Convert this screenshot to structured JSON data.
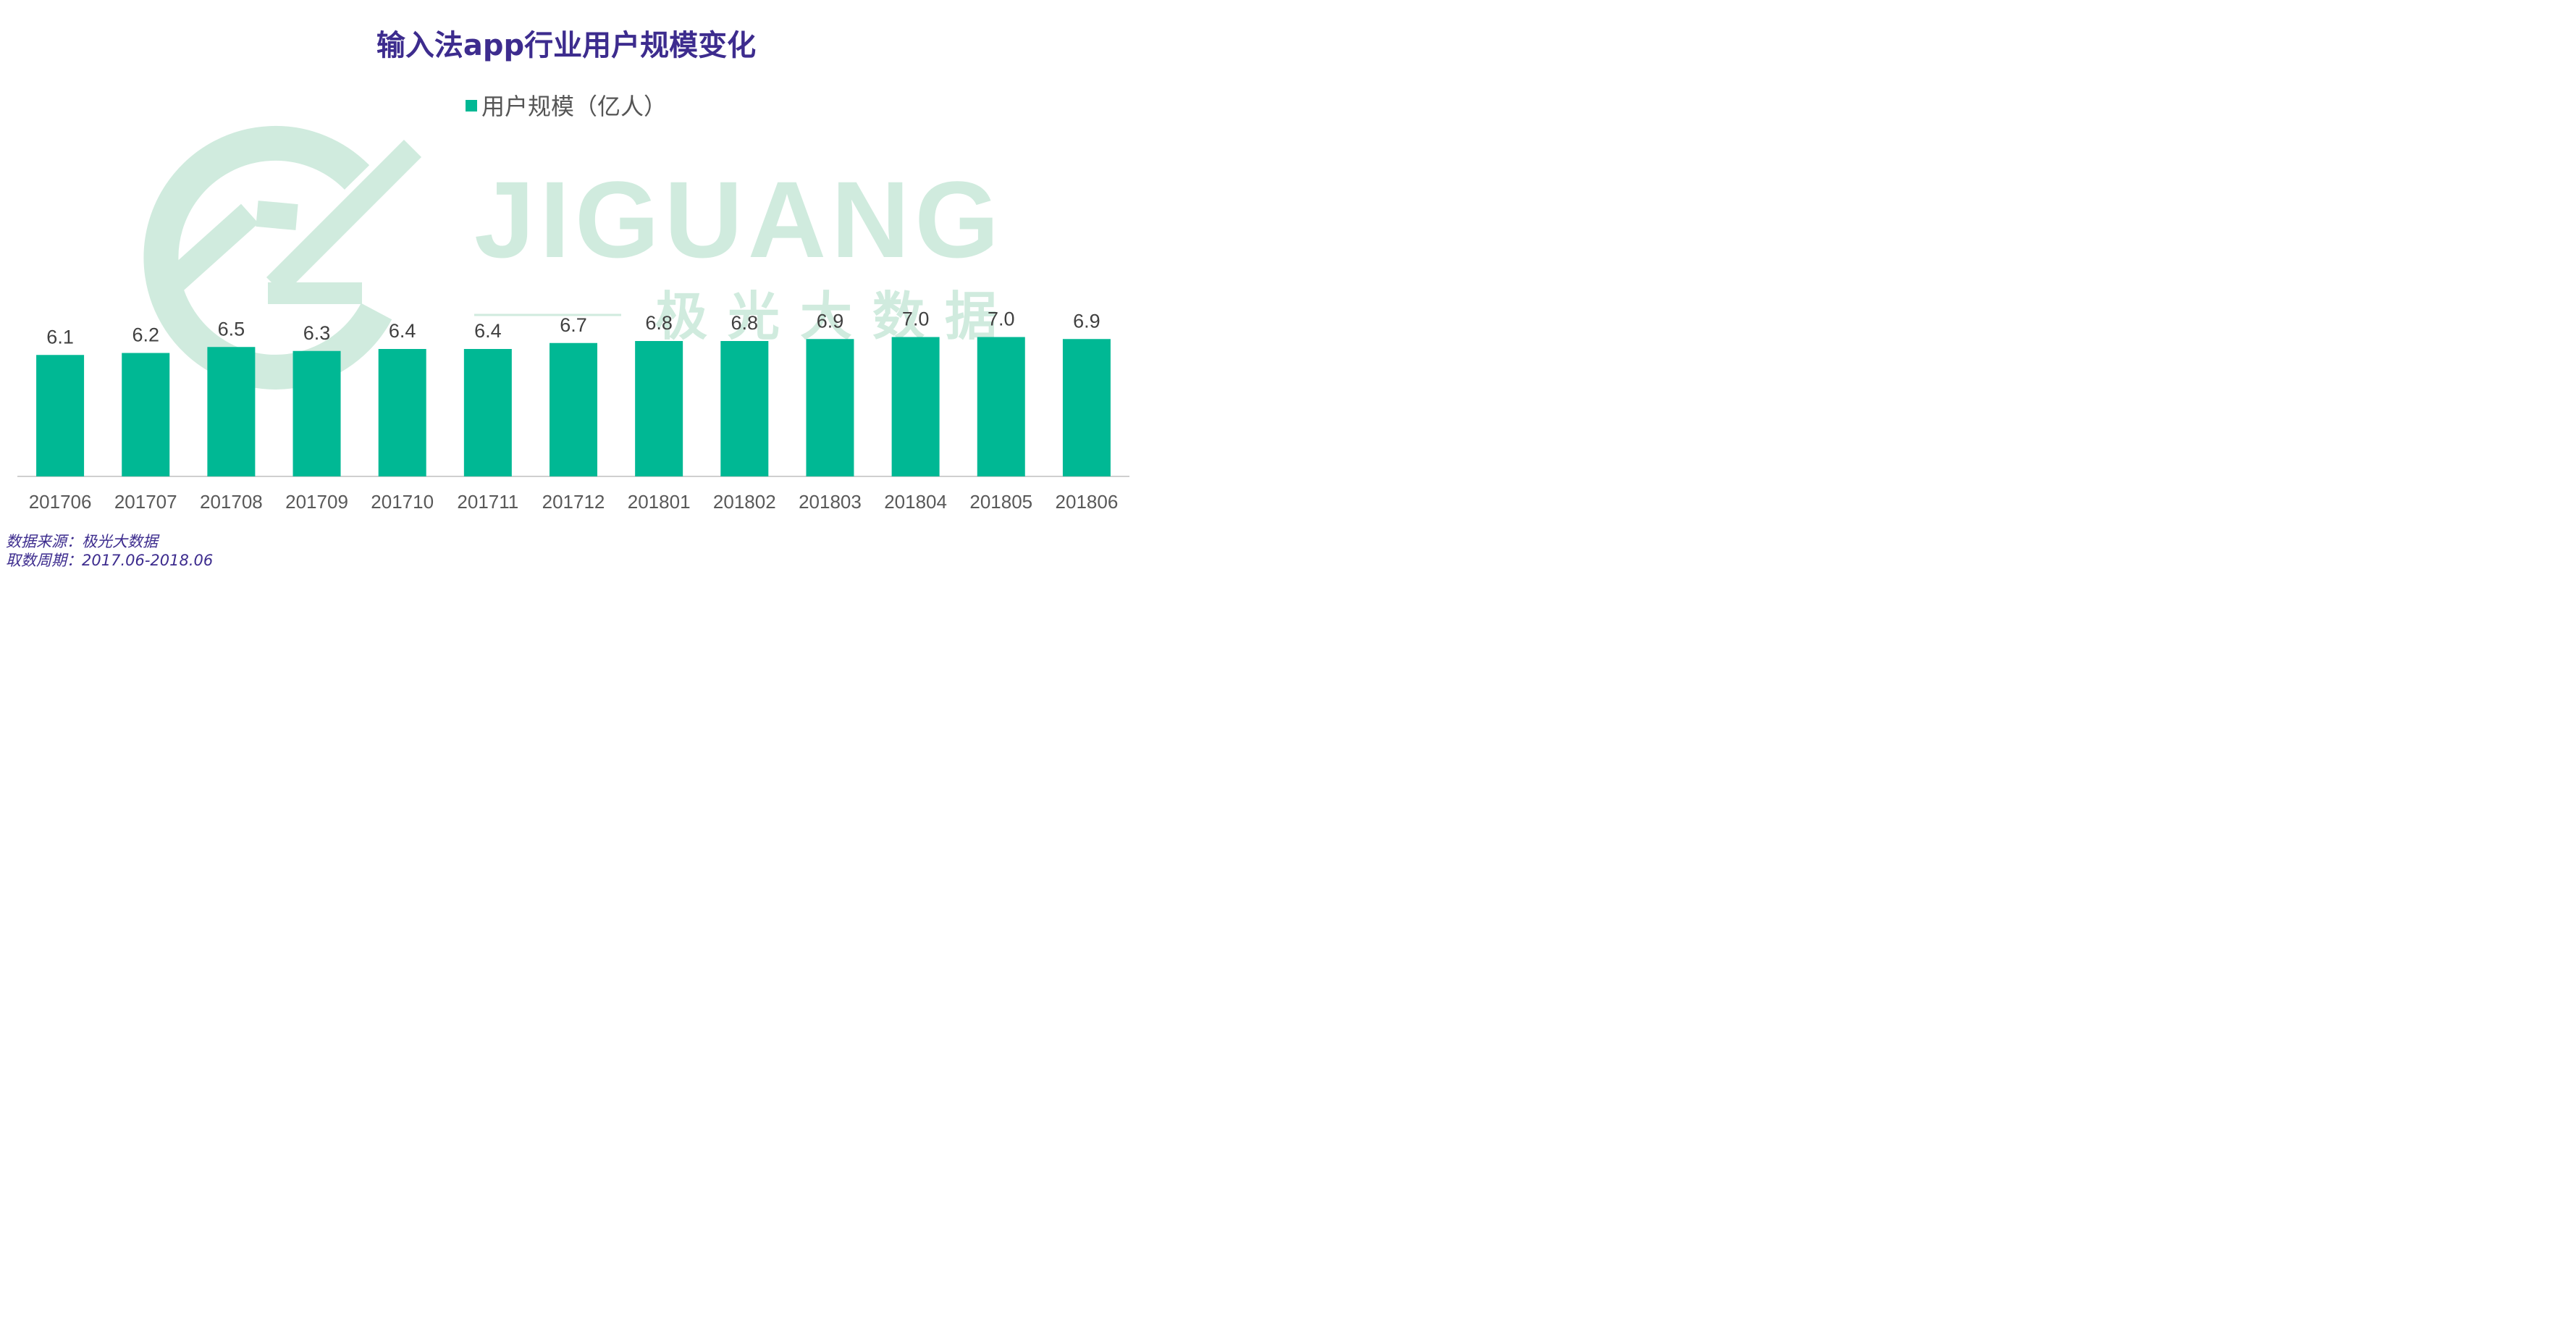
{
  "title": "输入法app行业用户规模变化",
  "legend": "用户规模（亿人）",
  "watermark": {
    "brand": "JIGUANG",
    "subtitle": "极光大数据"
  },
  "footer": {
    "source": "数据来源：极光大数据",
    "period": "取数周期：2017.06-2018.06"
  },
  "colors": {
    "bar": "#00b894",
    "title": "#3d2c8e",
    "watermark": "#d0ebde"
  },
  "chart_data": {
    "type": "bar",
    "categories": [
      "201706",
      "201707",
      "201708",
      "201709",
      "201710",
      "201711",
      "201712",
      "201801",
      "201802",
      "201803",
      "201804",
      "201805",
      "201806"
    ],
    "series": [
      {
        "name": "用户规模（亿人）",
        "values": [
          6.1,
          6.2,
          6.5,
          6.3,
          6.4,
          6.4,
          6.7,
          6.8,
          6.8,
          6.9,
          7.0,
          7.0,
          6.9
        ]
      }
    ],
    "data_labels": [
      "6.1",
      "6.2",
      "6.5",
      "6.3",
      "6.4",
      "6.4",
      "6.7",
      "6.8",
      "6.8",
      "6.9",
      "7.0",
      "7.0",
      "6.9"
    ],
    "title": "输入法app行业用户规模变化",
    "xlabel": "",
    "ylabel": "",
    "grid": false,
    "legend_position": "top"
  }
}
